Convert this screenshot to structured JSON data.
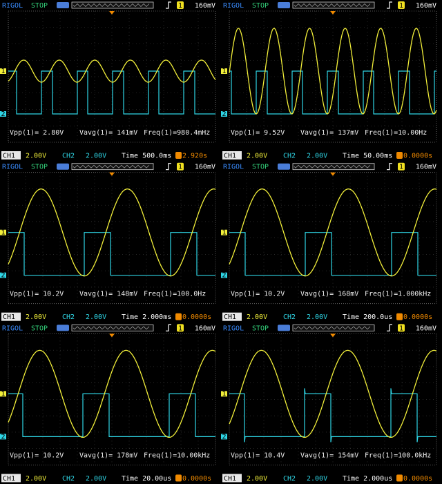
{
  "panels": [
    {
      "brand": "RIGOL",
      "status": "STOP",
      "trigger_source": "1",
      "trigger_level": "160mV",
      "ch1_marker": "1",
      "ch2_marker": "2",
      "measurements": [
        "Vpp(1)= 2.80V",
        "Vavg(1)= 141mV",
        "Freq(1)=980.4mHz"
      ],
      "ch1_label": "CH1",
      "ch1_scale": "2.00V",
      "ch2_label": "CH2",
      "ch2_scale": "2.00V",
      "timebase": "Time 500.0ms",
      "trigger_offset": "2.920s"
    },
    {
      "brand": "RIGOL",
      "status": "STOP",
      "trigger_source": "1",
      "trigger_level": "160mV",
      "ch1_marker": "1",
      "ch2_marker": "2",
      "measurements": [
        "Vpp(1)= 9.52V",
        "Vavg(1)= 137mV",
        "Freq(1)=10.00Hz"
      ],
      "ch1_label": "CH1",
      "ch1_scale": "2.00V",
      "ch2_label": "CH2",
      "ch2_scale": "2.00V",
      "timebase": "Time 50.00ms",
      "trigger_offset": "0.0000s"
    },
    {
      "brand": "RIGOL",
      "status": "STOP",
      "trigger_source": "1",
      "trigger_level": "160mV",
      "ch1_marker": "1",
      "ch2_marker": "2",
      "measurements": [
        "Vpp(1)= 10.2V",
        "Vavg(1)= 148mV",
        "Freq(1)=100.0Hz"
      ],
      "ch1_label": "CH1",
      "ch1_scale": "2.00V",
      "ch2_label": "CH2",
      "ch2_scale": "2.00V",
      "timebase": "Time 2.000ms",
      "trigger_offset": "0.0000s"
    },
    {
      "brand": "RIGOL",
      "status": "STOP",
      "trigger_source": "1",
      "trigger_level": "160mV",
      "ch1_marker": "1",
      "ch2_marker": "2",
      "measurements": [
        "Vpp(1)= 10.2V",
        "Vavg(1)= 168mV",
        "Freq(1)=1.000kHz"
      ],
      "ch1_label": "CH1",
      "ch1_scale": "2.00V",
      "ch2_label": "CH2",
      "ch2_scale": "2.00V",
      "timebase": "Time 200.0us",
      "trigger_offset": "0.0000s"
    },
    {
      "brand": "RIGOL",
      "status": "STOP",
      "trigger_source": "1",
      "trigger_level": "160mV",
      "ch1_marker": "1",
      "ch2_marker": "2",
      "measurements": [
        "Vpp(1)= 10.2V",
        "Vavg(1)= 178mV",
        "Freq(1)=10.00kHz"
      ],
      "ch1_label": "CH1",
      "ch1_scale": "2.00V",
      "ch2_label": "CH2",
      "ch2_scale": "2.00V",
      "timebase": "Time 20.00us",
      "trigger_offset": "0.0000s"
    },
    {
      "brand": "RIGOL",
      "status": "STOP",
      "trigger_source": "1",
      "trigger_level": "160mV",
      "ch1_marker": "1",
      "ch2_marker": "2",
      "measurements": [
        "Vpp(1)= 10.4V",
        "Vavg(1)= 154mV",
        "Freq(1)=100.0kHz"
      ],
      "ch1_label": "CH1",
      "ch1_scale": "2.00V",
      "ch2_label": "CH2",
      "ch2_scale": "2.00V",
      "timebase": "Time 2.000us",
      "trigger_offset": "0.0000s"
    }
  ]
}
